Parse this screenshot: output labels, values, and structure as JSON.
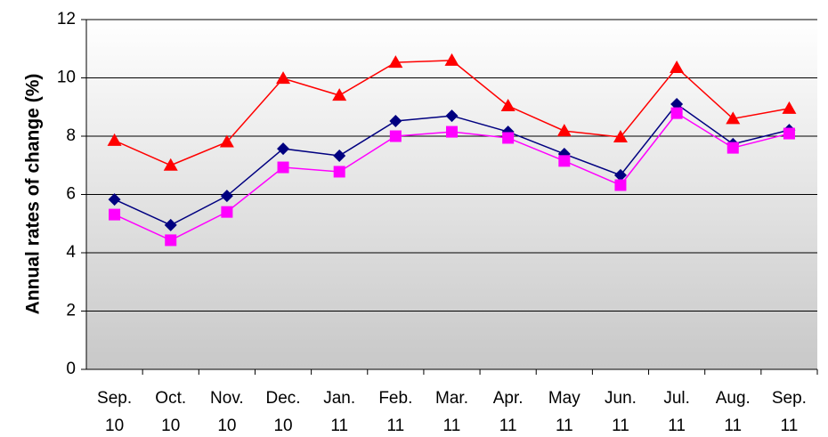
{
  "chart_data": {
    "type": "line",
    "y_label": "Annual rates of change (%)",
    "categories": [
      "Sep. 10",
      "Oct. 10",
      "Nov. 10",
      "Dec. 10",
      "Jan. 11",
      "Feb. 11",
      "Mar. 11",
      "Apr. 11",
      "May 11",
      "Jun. 11",
      "Jul. 11",
      "Aug. 11",
      "Sep. 11"
    ],
    "series": [
      {
        "color": "#ff0000",
        "marker": "triangle",
        "values": [
          7.85,
          7.0,
          7.8,
          9.98,
          9.4,
          10.53,
          10.6,
          9.04,
          8.18,
          7.97,
          10.35,
          8.6,
          8.95
        ]
      },
      {
        "color": "#000080",
        "marker": "diamond",
        "values": [
          5.83,
          4.95,
          5.95,
          7.57,
          7.33,
          8.52,
          8.7,
          8.15,
          7.39,
          6.66,
          9.1,
          7.73,
          8.21
        ]
      },
      {
        "color": "#ff00ff",
        "marker": "square",
        "values": [
          5.31,
          4.43,
          5.4,
          6.93,
          6.78,
          8.0,
          8.15,
          7.94,
          7.15,
          6.32,
          8.79,
          7.6,
          8.09
        ]
      }
    ],
    "ylim": [
      0,
      12
    ],
    "yticks": [
      0,
      2,
      4,
      6,
      8,
      10,
      12
    ],
    "grid": true
  }
}
